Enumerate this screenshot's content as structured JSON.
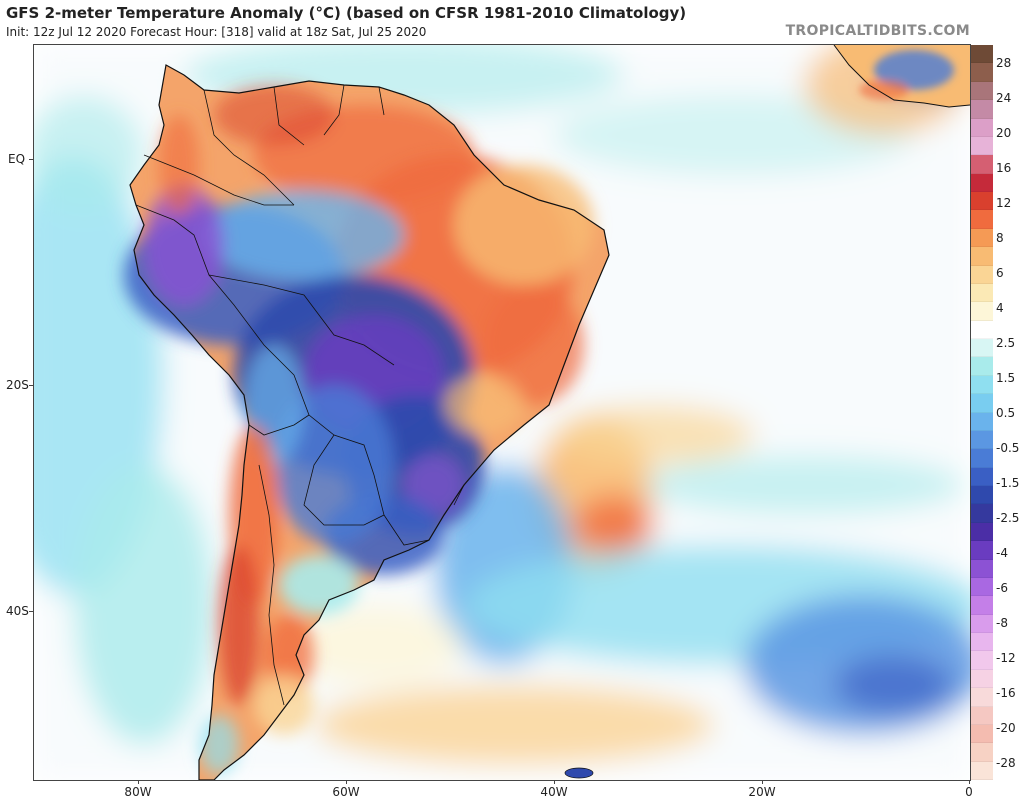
{
  "header": {
    "title": "GFS 2-meter Temperature Anomaly (°C) (based on CFSR 1981-2010 Climatology)",
    "subtitle": "Init: 12z Jul 12 2020   Forecast Hour: [318]   valid at 18z Sat, Jul 25 2020",
    "brand": "TROPICALTIDBITS.COM"
  },
  "axes": {
    "lat_labels": [
      "EQ",
      "20S",
      "40S"
    ],
    "lon_labels": [
      "80W",
      "60W",
      "40W",
      "20W",
      "0"
    ]
  },
  "colorbar": {
    "labels": [
      "28",
      "24",
      "20",
      "16",
      "12",
      "8",
      "6",
      "4",
      "2.5",
      "1.5",
      "0.5",
      "-0.5",
      "-1.5",
      "-2.5",
      "-4",
      "-6",
      "-8",
      "-12",
      "-16",
      "-20",
      "-28"
    ],
    "colors": [
      "#6e4a36",
      "#8d5e4c",
      "#a9757a",
      "#c48aa6",
      "#dc9fc8",
      "#e7b3d8",
      "#d55f72",
      "#c52a3a",
      "#d9402e",
      "#f06b3e",
      "#f59a55",
      "#f8bb73",
      "#fad595",
      "#fbe9b5",
      "#fdf6d8",
      "#ffffff",
      "#d8f6f4",
      "#a9ebeb",
      "#8fdff0",
      "#79cdf0",
      "#6ab3ec",
      "#5b97e2",
      "#4a7cd6",
      "#3a5fc4",
      "#2f49ad",
      "#35399e",
      "#4b2ea6",
      "#6a3cc0",
      "#8c52d4",
      "#a968e2",
      "#c47fe8",
      "#d99cec",
      "#e8b6ee",
      "#f1c8ec",
      "#f6d2e4",
      "#f8dada",
      "#f5c8c2",
      "#f4bcb0",
      "#f7d2c4",
      "#fae4d8"
    ]
  }
}
